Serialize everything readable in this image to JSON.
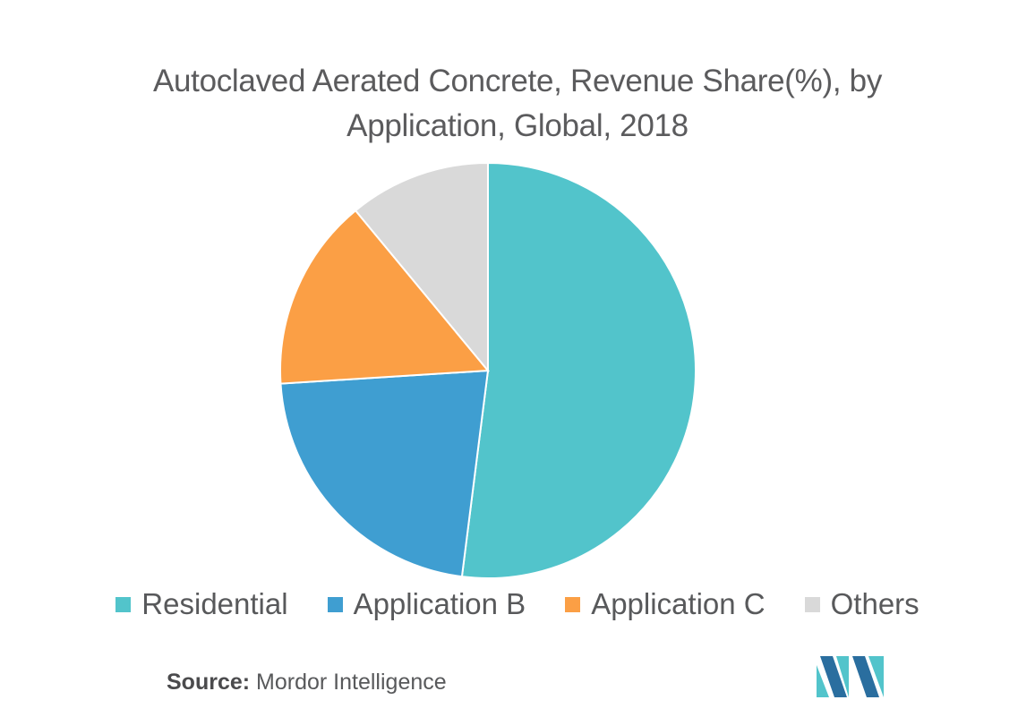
{
  "chart_data": {
    "type": "pie",
    "title_lines": [
      "Autoclaved Aerated Concrete, Revenue Share(%), by",
      "Application, Global, 2018"
    ],
    "slices": [
      {
        "label": "Residential",
        "value": 52,
        "color": "#52c4cb"
      },
      {
        "label": "Application B",
        "value": 22,
        "color": "#3f9ed1"
      },
      {
        "label": "Application C",
        "value": 15,
        "color": "#fb9f45"
      },
      {
        "label": "Others",
        "value": 11,
        "color": "#d9d9d9"
      }
    ],
    "start_angle": "top",
    "direction": "clockwise",
    "legend_placement": "bottom"
  },
  "source": {
    "label": "Source:",
    "text": "Mordor Intelligence"
  },
  "logo": {
    "icon": "mordor-intelligence-logo",
    "colors": [
      "#2a6e9f",
      "#52c4cb"
    ]
  }
}
